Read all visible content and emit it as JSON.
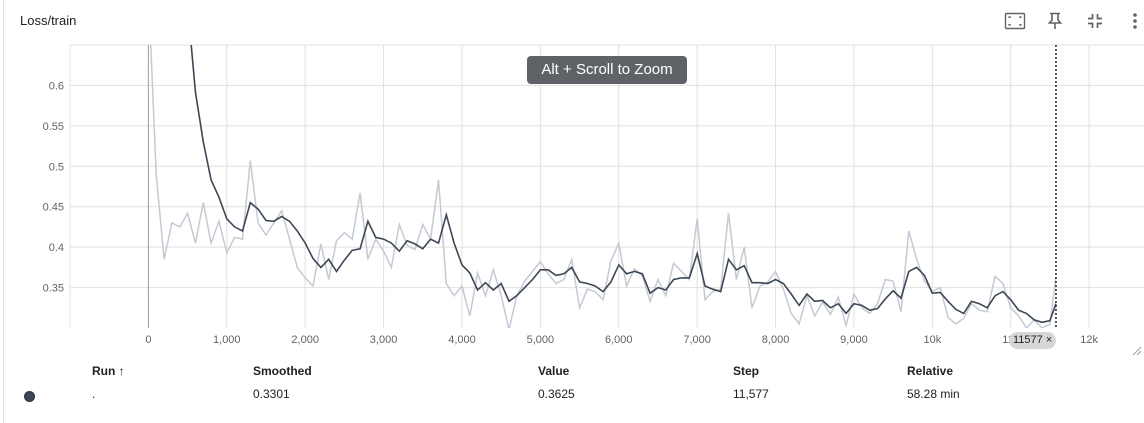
{
  "card": {
    "title": "Loss/train"
  },
  "toolbar": {
    "icons": [
      "fit-domain-icon",
      "pin-icon",
      "exit-fullscreen-icon",
      "more-vert-icon"
    ]
  },
  "tooltip": {
    "text": "Alt + Scroll to Zoom"
  },
  "hover": {
    "step_label": "11577",
    "close_glyph": "×"
  },
  "colors": {
    "smoothed": "#3c4756",
    "raw": "#c5c9d3",
    "grid": "#e0e0e0",
    "axis": "#9e9e9e"
  },
  "chart_data": {
    "type": "line",
    "title": "Loss/train",
    "xlabel": "",
    "ylabel": "",
    "xlim": [
      -1000,
      12700
    ],
    "ylim": [
      0.3,
      0.65
    ],
    "x_ticks": [
      0,
      1000,
      2000,
      3000,
      4000,
      5000,
      6000,
      7000,
      8000,
      9000,
      10000,
      11000,
      12000
    ],
    "x_tick_labels": [
      "0",
      "1,000",
      "2,000",
      "3,000",
      "4,000",
      "5,000",
      "6,000",
      "7,000",
      "8,000",
      "9,000",
      "10k",
      "11k",
      "12k"
    ],
    "y_ticks": [
      0.35,
      0.4,
      0.45,
      0.5,
      0.55,
      0.6
    ],
    "y_tick_labels": [
      "0.35",
      "0.4",
      "0.45",
      "0.5",
      "0.55",
      "0.6"
    ],
    "grid": true,
    "hover_step": 11577,
    "series": [
      {
        "name": "Value",
        "x": [
          0,
          100,
          200,
          300,
          400,
          500,
          600,
          700,
          800,
          900,
          1000,
          1100,
          1200,
          1300,
          1400,
          1500,
          1600,
          1700,
          1800,
          1900,
          2000,
          2100,
          2200,
          2300,
          2400,
          2500,
          2600,
          2700,
          2800,
          2900,
          3000,
          3100,
          3200,
          3300,
          3400,
          3500,
          3600,
          3700,
          3800,
          3900,
          4000,
          4100,
          4200,
          4300,
          4400,
          4500,
          4600,
          4700,
          4800,
          4900,
          5000,
          5100,
          5200,
          5300,
          5400,
          5500,
          5600,
          5700,
          5800,
          5900,
          6000,
          6100,
          6200,
          6300,
          6400,
          6500,
          6600,
          6700,
          6800,
          6900,
          7000,
          7100,
          7200,
          7300,
          7400,
          7500,
          7600,
          7700,
          7800,
          7900,
          8000,
          8100,
          8200,
          8300,
          8400,
          8500,
          8600,
          8700,
          8800,
          8900,
          9000,
          9100,
          9200,
          9300,
          9400,
          9500,
          9600,
          9700,
          9800,
          9900,
          10000,
          10100,
          10200,
          10300,
          10400,
          10500,
          10600,
          10700,
          10800,
          10900,
          11000,
          11100,
          11200,
          11300,
          11400,
          11500,
          11577
        ],
        "values": [
          0.72,
          0.49,
          0.385,
          0.43,
          0.425,
          0.442,
          0.405,
          0.455,
          0.405,
          0.432,
          0.393,
          0.412,
          0.41,
          0.507,
          0.43,
          0.415,
          0.43,
          0.445,
          0.41,
          0.375,
          0.362,
          0.352,
          0.404,
          0.36,
          0.408,
          0.418,
          0.41,
          0.467,
          0.385,
          0.41,
          0.395,
          0.375,
          0.428,
          0.402,
          0.397,
          0.428,
          0.41,
          0.483,
          0.355,
          0.34,
          0.352,
          0.315,
          0.368,
          0.34,
          0.372,
          0.34,
          0.298,
          0.34,
          0.358,
          0.37,
          0.382,
          0.367,
          0.355,
          0.36,
          0.385,
          0.325,
          0.348,
          0.345,
          0.335,
          0.383,
          0.405,
          0.352,
          0.373,
          0.365,
          0.333,
          0.36,
          0.34,
          0.38,
          0.37,
          0.36,
          0.435,
          0.335,
          0.345,
          0.348,
          0.442,
          0.36,
          0.4,
          0.325,
          0.352,
          0.357,
          0.37,
          0.348,
          0.318,
          0.305,
          0.34,
          0.315,
          0.332,
          0.317,
          0.338,
          0.303,
          0.342,
          0.325,
          0.318,
          0.33,
          0.36,
          0.358,
          0.32,
          0.42,
          0.385,
          0.358,
          0.345,
          0.35,
          0.313,
          0.305,
          0.312,
          0.33,
          0.322,
          0.32,
          0.364,
          0.355,
          0.325,
          0.315,
          0.3,
          0.31,
          0.3,
          0.305,
          0.3625
        ]
      },
      {
        "name": "Smoothed",
        "x": [
          500,
          600,
          700,
          800,
          900,
          1000,
          1100,
          1200,
          1300,
          1400,
          1500,
          1600,
          1700,
          1800,
          1900,
          2000,
          2100,
          2200,
          2300,
          2400,
          2500,
          2600,
          2700,
          2800,
          2900,
          3000,
          3100,
          3200,
          3300,
          3400,
          3500,
          3600,
          3700,
          3800,
          3900,
          4000,
          4100,
          4200,
          4300,
          4400,
          4500,
          4600,
          4700,
          4800,
          4900,
          5000,
          5100,
          5200,
          5300,
          5400,
          5500,
          5600,
          5700,
          5800,
          5900,
          6000,
          6100,
          6200,
          6300,
          6400,
          6500,
          6600,
          6700,
          6800,
          6900,
          7000,
          7100,
          7200,
          7300,
          7400,
          7500,
          7600,
          7700,
          7800,
          7900,
          8000,
          8100,
          8200,
          8300,
          8400,
          8500,
          8600,
          8700,
          8800,
          8900,
          9000,
          9100,
          9200,
          9300,
          9400,
          9500,
          9600,
          9700,
          9800,
          9900,
          10000,
          10100,
          10200,
          10300,
          10400,
          10500,
          10600,
          10700,
          10800,
          10900,
          11000,
          11100,
          11200,
          11300,
          11400,
          11500,
          11577
        ],
        "values": [
          0.7,
          0.592,
          0.53,
          0.483,
          0.462,
          0.435,
          0.425,
          0.42,
          0.455,
          0.447,
          0.433,
          0.432,
          0.438,
          0.432,
          0.42,
          0.405,
          0.386,
          0.375,
          0.385,
          0.37,
          0.384,
          0.396,
          0.398,
          0.432,
          0.412,
          0.41,
          0.405,
          0.395,
          0.408,
          0.404,
          0.398,
          0.41,
          0.405,
          0.44,
          0.405,
          0.378,
          0.368,
          0.347,
          0.356,
          0.347,
          0.355,
          0.333,
          0.34,
          0.35,
          0.36,
          0.372,
          0.372,
          0.365,
          0.367,
          0.375,
          0.357,
          0.355,
          0.352,
          0.345,
          0.357,
          0.378,
          0.367,
          0.37,
          0.367,
          0.343,
          0.35,
          0.347,
          0.36,
          0.362,
          0.362,
          0.392,
          0.352,
          0.348,
          0.345,
          0.385,
          0.372,
          0.377,
          0.356,
          0.356,
          0.355,
          0.36,
          0.355,
          0.342,
          0.328,
          0.342,
          0.333,
          0.334,
          0.325,
          0.33,
          0.318,
          0.33,
          0.328,
          0.322,
          0.324,
          0.336,
          0.346,
          0.337,
          0.37,
          0.375,
          0.365,
          0.343,
          0.344,
          0.333,
          0.323,
          0.318,
          0.333,
          0.33,
          0.325,
          0.34,
          0.345,
          0.335,
          0.322,
          0.318,
          0.31,
          0.307,
          0.309,
          0.3301
        ]
      }
    ]
  },
  "table": {
    "headers": {
      "run": "Run ↑",
      "smoothed": "Smoothed",
      "value": "Value",
      "step": "Step",
      "relative": "Relative"
    },
    "rows": [
      {
        "run": ".",
        "smoothed": "0.3301",
        "value": "0.3625",
        "step": "11,577",
        "relative": "58.28 min"
      }
    ]
  }
}
